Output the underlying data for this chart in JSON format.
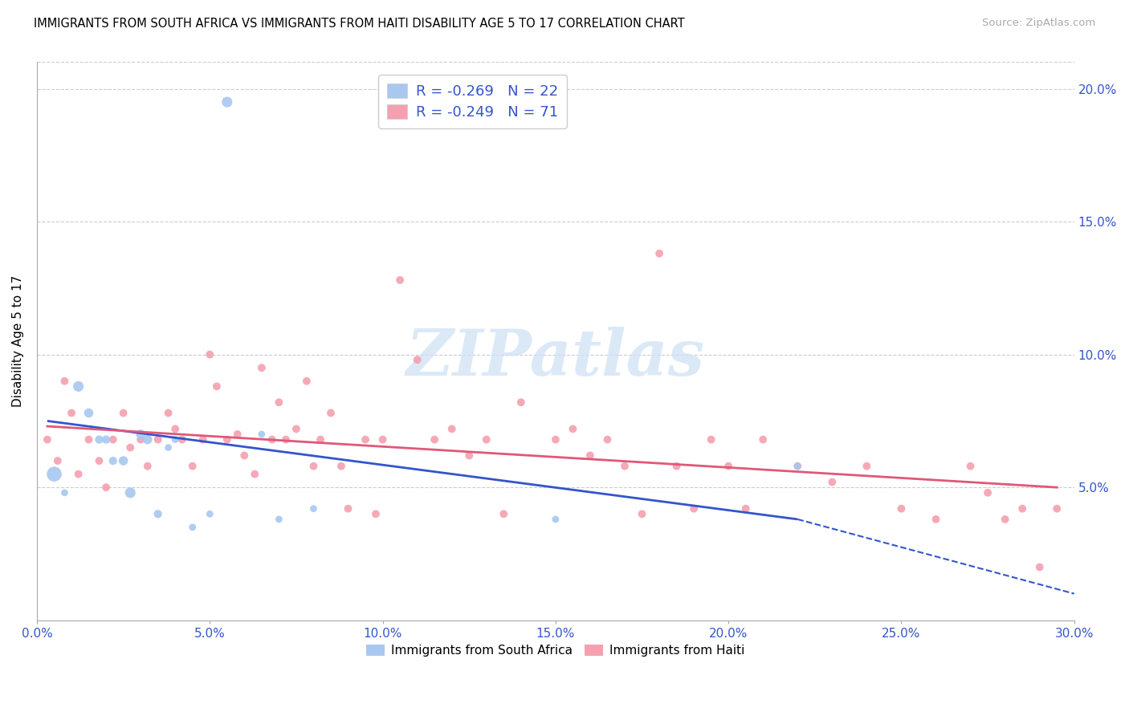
{
  "title": "IMMIGRANTS FROM SOUTH AFRICA VS IMMIGRANTS FROM HAITI DISABILITY AGE 5 TO 17 CORRELATION CHART",
  "source": "Source: ZipAtlas.com",
  "ylabel": "Disability Age 5 to 17",
  "xlim": [
    0.0,
    0.3
  ],
  "ylim": [
    0.0,
    0.21
  ],
  "xtick_labels": [
    "0.0%",
    "5.0%",
    "10.0%",
    "15.0%",
    "20.0%",
    "25.0%",
    "30.0%"
  ],
  "xtick_vals": [
    0.0,
    0.05,
    0.1,
    0.15,
    0.2,
    0.25,
    0.3
  ],
  "ytick_labels": [
    "5.0%",
    "10.0%",
    "15.0%",
    "20.0%"
  ],
  "ytick_vals": [
    0.05,
    0.1,
    0.15,
    0.2
  ],
  "south_africa_color": "#a8c8f0",
  "haiti_color": "#f4a0b0",
  "trend_sa_color": "#3355cc",
  "trend_haiti_color": "#e05878",
  "watermark_color": "#cce0f5",
  "sa_x": [
    0.005,
    0.008,
    0.012,
    0.015,
    0.018,
    0.02,
    0.022,
    0.025,
    0.027,
    0.03,
    0.032,
    0.035,
    0.038,
    0.04,
    0.045,
    0.05,
    0.055,
    0.065,
    0.07,
    0.08,
    0.15,
    0.22
  ],
  "sa_y": [
    0.055,
    0.048,
    0.088,
    0.078,
    0.068,
    0.068,
    0.06,
    0.06,
    0.048,
    0.07,
    0.068,
    0.04,
    0.065,
    0.068,
    0.035,
    0.04,
    0.195,
    0.07,
    0.038,
    0.042,
    0.038,
    0.058
  ],
  "sa_size": [
    180,
    40,
    90,
    70,
    55,
    55,
    55,
    70,
    90,
    70,
    70,
    55,
    40,
    40,
    40,
    40,
    90,
    40,
    40,
    40,
    40,
    40
  ],
  "haiti_x": [
    0.003,
    0.006,
    0.008,
    0.01,
    0.012,
    0.015,
    0.018,
    0.02,
    0.022,
    0.025,
    0.027,
    0.03,
    0.032,
    0.035,
    0.038,
    0.04,
    0.042,
    0.045,
    0.048,
    0.05,
    0.052,
    0.055,
    0.058,
    0.06,
    0.063,
    0.065,
    0.068,
    0.07,
    0.072,
    0.075,
    0.078,
    0.08,
    0.082,
    0.085,
    0.088,
    0.09,
    0.095,
    0.098,
    0.1,
    0.105,
    0.11,
    0.115,
    0.12,
    0.125,
    0.13,
    0.135,
    0.14,
    0.15,
    0.155,
    0.16,
    0.165,
    0.17,
    0.175,
    0.18,
    0.185,
    0.19,
    0.195,
    0.2,
    0.205,
    0.21,
    0.22,
    0.23,
    0.24,
    0.25,
    0.26,
    0.27,
    0.275,
    0.28,
    0.285,
    0.29,
    0.295
  ],
  "haiti_y": [
    0.068,
    0.06,
    0.09,
    0.078,
    0.055,
    0.068,
    0.06,
    0.05,
    0.068,
    0.078,
    0.065,
    0.068,
    0.058,
    0.068,
    0.078,
    0.072,
    0.068,
    0.058,
    0.068,
    0.1,
    0.088,
    0.068,
    0.07,
    0.062,
    0.055,
    0.095,
    0.068,
    0.082,
    0.068,
    0.072,
    0.09,
    0.058,
    0.068,
    0.078,
    0.058,
    0.042,
    0.068,
    0.04,
    0.068,
    0.128,
    0.098,
    0.068,
    0.072,
    0.062,
    0.068,
    0.04,
    0.082,
    0.068,
    0.072,
    0.062,
    0.068,
    0.058,
    0.04,
    0.138,
    0.058,
    0.042,
    0.068,
    0.058,
    0.042,
    0.068,
    0.058,
    0.052,
    0.058,
    0.042,
    0.038,
    0.058,
    0.048,
    0.038,
    0.042,
    0.02,
    0.042
  ],
  "haiti_size": [
    50,
    50,
    50,
    50,
    50,
    50,
    50,
    50,
    50,
    50,
    50,
    50,
    50,
    50,
    50,
    50,
    50,
    50,
    50,
    50,
    50,
    50,
    50,
    50,
    50,
    50,
    50,
    50,
    50,
    50,
    50,
    50,
    50,
    50,
    50,
    50,
    50,
    50,
    50,
    50,
    50,
    50,
    50,
    50,
    50,
    50,
    50,
    50,
    50,
    50,
    50,
    50,
    50,
    50,
    50,
    50,
    50,
    50,
    50,
    50,
    50,
    50,
    50,
    50,
    50,
    50,
    50,
    50,
    50,
    50,
    50
  ],
  "trend_sa_x_start": 0.003,
  "trend_sa_x_solid_end": 0.22,
  "trend_sa_x_dash_end": 0.3,
  "trend_sa_y_start": 0.075,
  "trend_sa_y_solid_end": 0.038,
  "trend_sa_y_dash_end": 0.01,
  "trend_haiti_x_start": 0.003,
  "trend_haiti_x_end": 0.295,
  "trend_haiti_y_start": 0.073,
  "trend_haiti_y_end": 0.05
}
